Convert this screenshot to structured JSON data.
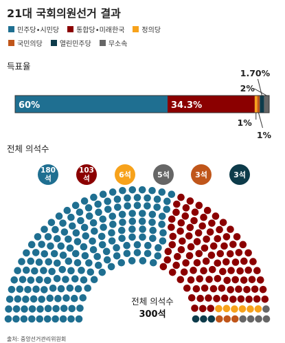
{
  "header": {
    "title": "21대 국회의원선거 결과"
  },
  "legend": [
    {
      "name": "민주당•시민당",
      "color": "#1f6f91"
    },
    {
      "name": "통합당•미래한국",
      "color": "#8b0000"
    },
    {
      "name": "정의당",
      "color": "#f7a21b"
    },
    {
      "name": "국민의당",
      "color": "#c0561a"
    },
    {
      "name": "열린민주당",
      "color": "#0d3b4a"
    },
    {
      "name": "무소속",
      "color": "#666666"
    }
  ],
  "sections": {
    "vote_share": "득표율",
    "seats": "전체 의석수"
  },
  "center_label": {
    "line1": "전체 의석수",
    "line2": "300석"
  },
  "source": "출처: 중앙선거관리위원회",
  "chart_data": [
    {
      "type": "bar",
      "subtitle": "득표율",
      "orientation": "horizontal-stacked",
      "unit": "%",
      "xlim": [
        0,
        100
      ],
      "series": [
        {
          "name": "민주당•시민당",
          "value": 60,
          "label": "60%",
          "color": "#1f6f91"
        },
        {
          "name": "통합당•미래한국",
          "value": 34.3,
          "label": "34.3%",
          "color": "#8b0000"
        },
        {
          "name": "정의당",
          "value": 1,
          "label": "1%",
          "color": "#f7a21b"
        },
        {
          "name": "국민의당",
          "value": 1,
          "label": "1%",
          "color": "#c0561a"
        },
        {
          "name": "열린민주당",
          "value": 1.7,
          "label": "1.70%",
          "color": "#0d3b4a"
        },
        {
          "name": "무소속",
          "value": 2,
          "label": "2%",
          "color": "#666666"
        }
      ]
    },
    {
      "type": "parliament",
      "subtitle": "전체 의석수",
      "total": 300,
      "series": [
        {
          "name": "민주당•시민당",
          "seats": 180,
          "label": "180석",
          "color": "#1f6f91"
        },
        {
          "name": "통합당•미래한국",
          "seats": 103,
          "label": "103석",
          "color": "#8b0000"
        },
        {
          "name": "정의당",
          "seats": 6,
          "label": "6석",
          "color": "#f7a21b"
        },
        {
          "name": "무소속",
          "seats": 5,
          "label": "5석",
          "color": "#666666"
        },
        {
          "name": "국민의당",
          "seats": 3,
          "label": "3석",
          "color": "#c0561a"
        },
        {
          "name": "열린민주당",
          "seats": 3,
          "label": "3석",
          "color": "#0d3b4a"
        }
      ]
    }
  ]
}
